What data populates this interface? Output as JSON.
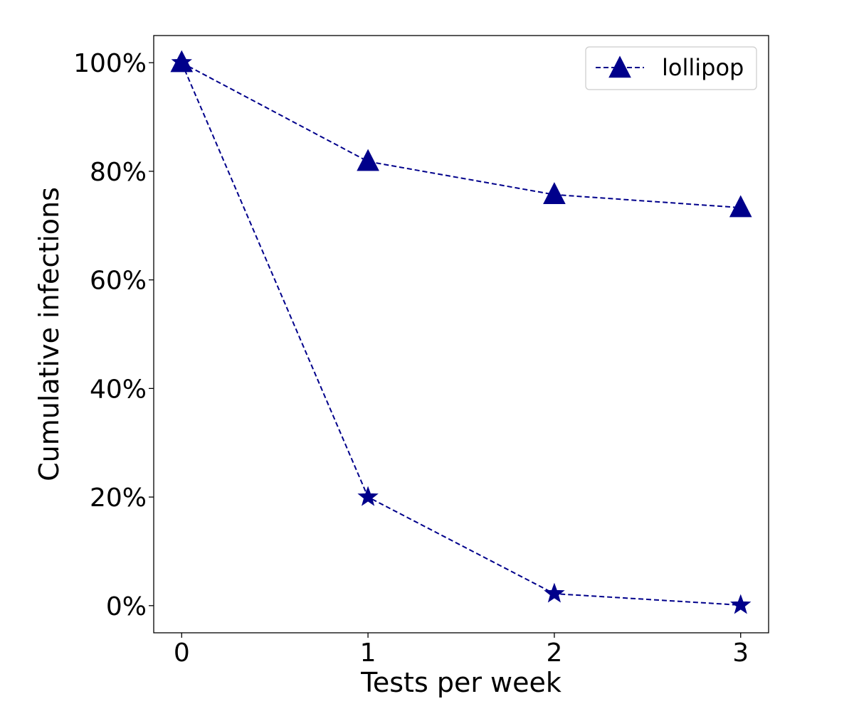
{
  "chart_data": {
    "type": "line",
    "title": "",
    "xlabel": "Tests per week",
    "ylabel": "Cumulative infections",
    "x": [
      0,
      1,
      2,
      3
    ],
    "xlim": [
      -0.15,
      3.15
    ],
    "ylim": [
      -0.05,
      1.05
    ],
    "x_ticks": [
      0,
      1,
      2,
      3
    ],
    "y_ticks": [
      0,
      0.2,
      0.4,
      0.6,
      0.8,
      1.0
    ],
    "y_tick_labels": [
      "0%",
      "20%",
      "40%",
      "60%",
      "80%",
      "100%"
    ],
    "grid": false,
    "legend_position": "top-right",
    "series": [
      {
        "name": "lollipop",
        "marker": "triangle",
        "line_style": "dashed",
        "color": "#00008b",
        "values": [
          1.0,
          0.818,
          0.757,
          0.733
        ]
      },
      {
        "marker": "star",
        "line_style": "dashed",
        "color": "#00008b",
        "values": [
          1.0,
          0.2,
          0.022,
          0.001
        ]
      }
    ]
  }
}
